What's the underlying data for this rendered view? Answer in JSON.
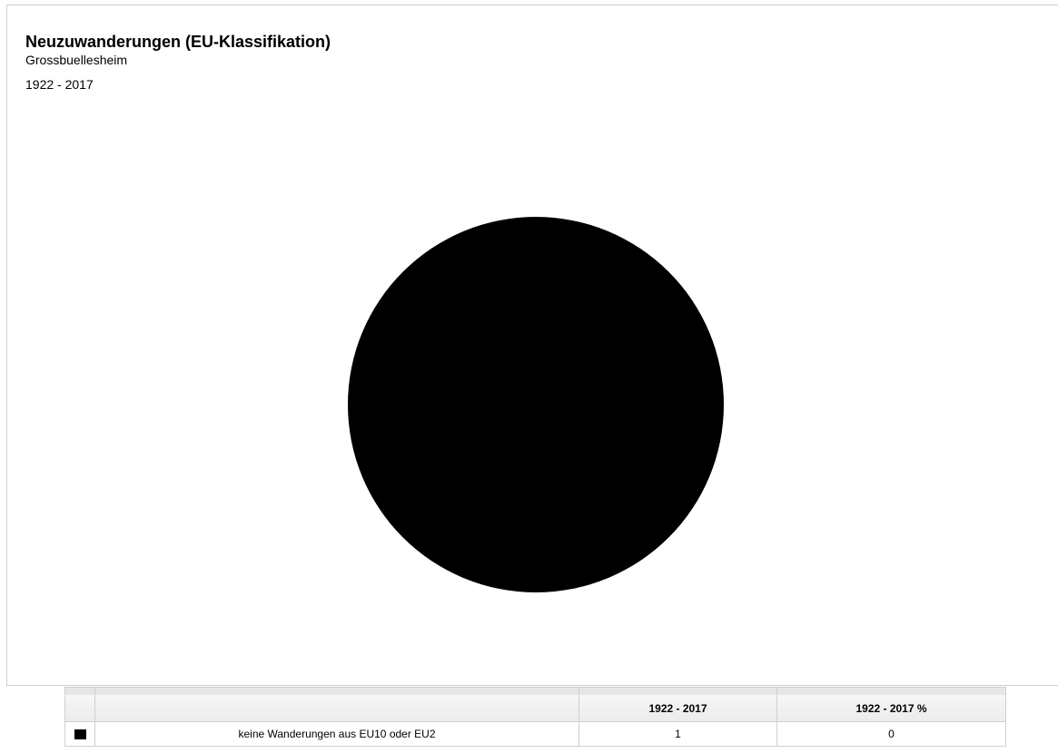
{
  "chart_data": {
    "type": "pie",
    "title": "Neuzuwanderungen (EU-Klassifikation)",
    "subtitle": "Grossbuellesheim",
    "period": "1922 - 2017",
    "series": [
      {
        "name": "keine Wanderungen aus EU10 oder EU2",
        "value": 1,
        "percent": 0,
        "color": "#000000"
      }
    ]
  },
  "table": {
    "columns": [
      "",
      "",
      "1922 - 2017",
      "1922 - 2017 %"
    ],
    "rows": [
      {
        "label": "keine Wanderungen aus EU10 oder EU2",
        "value": "1",
        "percent": "0",
        "color": "#000000"
      }
    ]
  }
}
